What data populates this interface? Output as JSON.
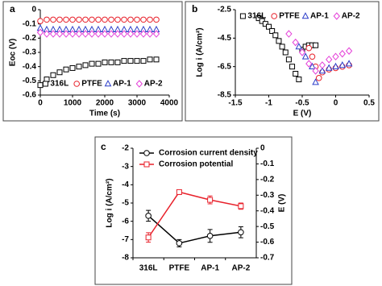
{
  "chart_data": [
    {
      "type": "scatter",
      "label": "a",
      "x_label": "Time (s)",
      "y_label": "Eoc (V)",
      "xlim": [
        0,
        4000
      ],
      "xticks": [
        0,
        1000,
        2000,
        3000,
        4000
      ],
      "ylim": [
        -0.6,
        0
      ],
      "yticks": [
        0,
        -0.1,
        -0.2,
        -0.3,
        -0.4,
        -0.5,
        -0.6
      ],
      "legend": "lower center",
      "series": [
        {
          "name": "316L",
          "color": "#000000",
          "marker": "square",
          "x": [
            0,
            200,
            400,
            600,
            800,
            1000,
            1200,
            1400,
            1600,
            1800,
            2000,
            2200,
            2400,
            2600,
            2800,
            3000,
            3200,
            3400,
            3600
          ],
          "values": [
            -0.53,
            -0.49,
            -0.46,
            -0.44,
            -0.42,
            -0.41,
            -0.4,
            -0.39,
            -0.38,
            -0.38,
            -0.37,
            -0.37,
            -0.37,
            -0.36,
            -0.36,
            -0.36,
            -0.36,
            -0.35,
            -0.35
          ]
        },
        {
          "name": "PTFE",
          "color": "#e8212b",
          "marker": "circle",
          "x": [
            0,
            200,
            400,
            600,
            800,
            1000,
            1200,
            1400,
            1600,
            1800,
            2000,
            2200,
            2400,
            2600,
            2800,
            3000,
            3200,
            3400,
            3600
          ],
          "values": [
            -0.08,
            -0.07,
            -0.07,
            -0.07,
            -0.07,
            -0.07,
            -0.07,
            -0.07,
            -0.07,
            -0.07,
            -0.07,
            -0.07,
            -0.07,
            -0.07,
            -0.07,
            -0.07,
            -0.07,
            -0.07,
            -0.07
          ]
        },
        {
          "name": "AP-1",
          "color": "#2a3cc9",
          "marker": "triangle",
          "x": [
            0,
            200,
            400,
            600,
            800,
            1000,
            1200,
            1400,
            1600,
            1800,
            2000,
            2200,
            2400,
            2600,
            2800,
            3000,
            3200,
            3400,
            3600
          ],
          "values": [
            -0.13,
            -0.14,
            -0.14,
            -0.14,
            -0.14,
            -0.14,
            -0.14,
            -0.14,
            -0.14,
            -0.14,
            -0.14,
            -0.14,
            -0.14,
            -0.14,
            -0.14,
            -0.14,
            -0.14,
            -0.14,
            -0.14
          ]
        },
        {
          "name": "AP-2",
          "color": "#e43fd8",
          "marker": "diamond",
          "x": [
            0,
            200,
            400,
            600,
            800,
            1000,
            1200,
            1400,
            1600,
            1800,
            2000,
            2200,
            2400,
            2600,
            2800,
            3000,
            3200,
            3400,
            3600
          ],
          "values": [
            -0.16,
            -0.17,
            -0.17,
            -0.17,
            -0.17,
            -0.17,
            -0.17,
            -0.17,
            -0.17,
            -0.17,
            -0.17,
            -0.17,
            -0.17,
            -0.17,
            -0.17,
            -0.17,
            -0.17,
            -0.17,
            -0.17
          ]
        }
      ]
    },
    {
      "type": "scatter",
      "label": "b",
      "x_label": "E (V)",
      "y_label": "Log i (A/cm²)",
      "xlim": [
        -1.5,
        0.5
      ],
      "xticks": [
        -1.5,
        -1,
        -0.5,
        0,
        0.5
      ],
      "ylim": [
        -8.5,
        -2.5
      ],
      "yticks": [
        -2.5,
        -4.5,
        -6.5,
        -8.5
      ],
      "legend": "upper center",
      "series": [
        {
          "name": "316L",
          "color": "#000000",
          "marker": "square",
          "x": [
            -1.15,
            -1.1,
            -1.05,
            -1,
            -0.95,
            -0.9,
            -0.85,
            -0.8,
            -0.75,
            -0.7,
            -0.65,
            -0.6,
            -0.55,
            -0.5,
            -0.45,
            -0.4,
            -0.35,
            -0.3
          ],
          "values": [
            -3.1,
            -3.3,
            -3.5,
            -3.7,
            -4,
            -4.3,
            -4.7,
            -5.1,
            -5.5,
            -6,
            -6.5,
            -7,
            -7.4,
            -5.3,
            -5.1,
            -5,
            -5,
            -5
          ]
        },
        {
          "name": "PTFE",
          "color": "#e8212b",
          "marker": "circle",
          "x": [
            -0.4,
            -0.35,
            -0.3,
            -0.25,
            -0.2,
            -0.1,
            0,
            0.1,
            0.2
          ],
          "values": [
            -5.2,
            -5.8,
            -6.5,
            -7.3,
            -6.9,
            -6.7,
            -6.6,
            -6.5,
            -6.4
          ]
        },
        {
          "name": "AP-1",
          "color": "#2a3cc9",
          "marker": "triangle",
          "x": [
            -0.55,
            -0.45,
            -0.35,
            -0.3,
            -0.2,
            -0.1,
            0,
            0.1,
            0.2
          ],
          "values": [
            -5.1,
            -5.8,
            -6.5,
            -7.6,
            -6.8,
            -6.6,
            -6.5,
            -6.4,
            -6.3
          ]
        },
        {
          "name": "AP-2",
          "color": "#e43fd8",
          "marker": "diamond",
          "x": [
            -0.7,
            -0.6,
            -0.5,
            -0.4,
            -0.3,
            -0.2,
            -0.1,
            0,
            0.1,
            0.2
          ],
          "values": [
            -4.2,
            -4.8,
            -5.5,
            -6.3,
            -6.8,
            -6.4,
            -6,
            -5.8,
            -5.6,
            -5.4
          ]
        }
      ]
    },
    {
      "type": "line",
      "label": "c",
      "y_label": "Log i (A/cm²)",
      "y2_label": "E (V)",
      "categories": [
        "316L",
        "PTFE",
        "AP-1",
        "AP-2"
      ],
      "ylim": [
        -8,
        -2
      ],
      "yticks": [
        -2,
        -3,
        -4,
        -5,
        -6,
        -7,
        -8
      ],
      "y2lim": [
        -0.7,
        0
      ],
      "y2ticks": [
        0,
        -0.1,
        -0.2,
        -0.3,
        -0.4,
        -0.5,
        -0.6,
        -0.7
      ],
      "legend": "upper left",
      "series": [
        {
          "name": "Corrosion current density",
          "color": "#000000",
          "marker": "circle",
          "values": [
            -5.7,
            -7.2,
            -6.8,
            -6.6
          ],
          "errors": [
            0.3,
            0.2,
            0.35,
            0.3
          ]
        },
        {
          "name": "Corrosion potential",
          "color": "#e8212b",
          "marker": "square",
          "axis": "y2",
          "values": [
            -0.57,
            -0.28,
            -0.33,
            -0.37
          ],
          "errors": [
            0.03,
            0.015,
            0.025,
            0.02
          ]
        }
      ]
    }
  ]
}
